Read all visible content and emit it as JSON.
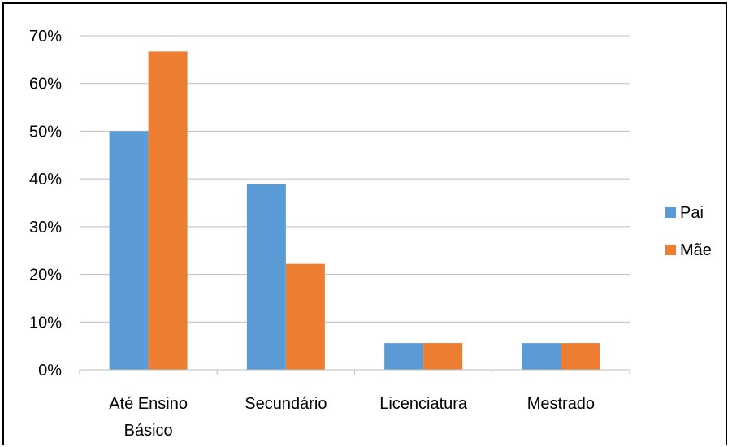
{
  "chart_data": {
    "type": "bar",
    "categories": [
      "Até Ensino Básico",
      "Secundário",
      "Licenciatura",
      "Mestrado"
    ],
    "category_lines": [
      [
        "Até Ensino",
        "Básico"
      ],
      [
        "Secundário"
      ],
      [
        "Licenciatura"
      ],
      [
        "Mestrado"
      ]
    ],
    "series": [
      {
        "name": "Pai",
        "color": "#5B9BD5",
        "values": [
          50,
          38.9,
          5.6,
          5.6
        ]
      },
      {
        "name": "Mãe",
        "color": "#ED7D31",
        "values": [
          66.7,
          22.2,
          5.6,
          5.6
        ]
      }
    ],
    "yticks": [
      "0%",
      "10%",
      "20%",
      "30%",
      "40%",
      "50%",
      "60%",
      "70%"
    ],
    "ylim": [
      0,
      70
    ],
    "title": "",
    "xlabel": "",
    "ylabel": "",
    "grid": true,
    "legend_position": "right",
    "gridline_color": "#BFBFBF"
  }
}
